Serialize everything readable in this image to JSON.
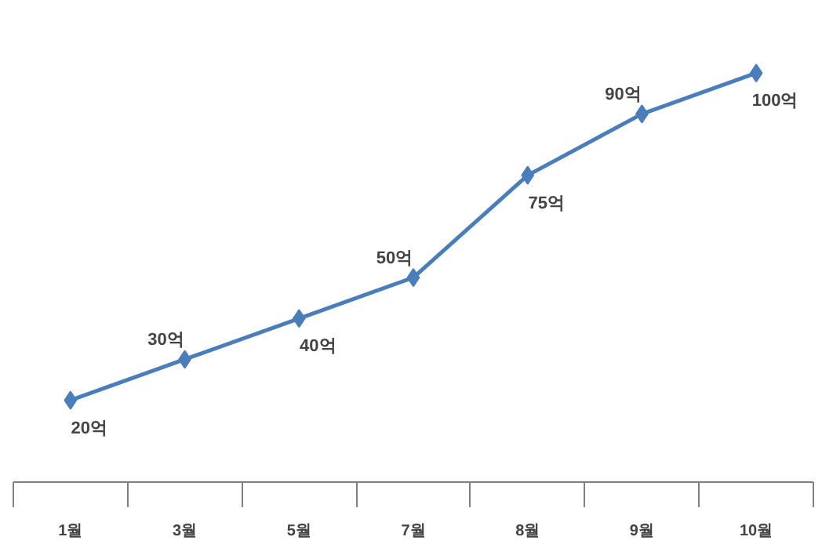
{
  "chart_data": {
    "type": "line",
    "categories": [
      "1월",
      "3월",
      "5월",
      "7월",
      "8월",
      "9월",
      "10월"
    ],
    "series": [
      {
        "color": "#4a7ebb",
        "values": [
          20,
          30,
          40,
          50,
          75,
          90,
          100
        ],
        "value_labels": [
          "20억",
          "30억",
          "40억",
          "50억",
          "75억",
          "90억",
          "100억"
        ]
      }
    ],
    "marker": "diamond",
    "line_style": "solid",
    "grid": false,
    "tick_labels": "x"
  }
}
